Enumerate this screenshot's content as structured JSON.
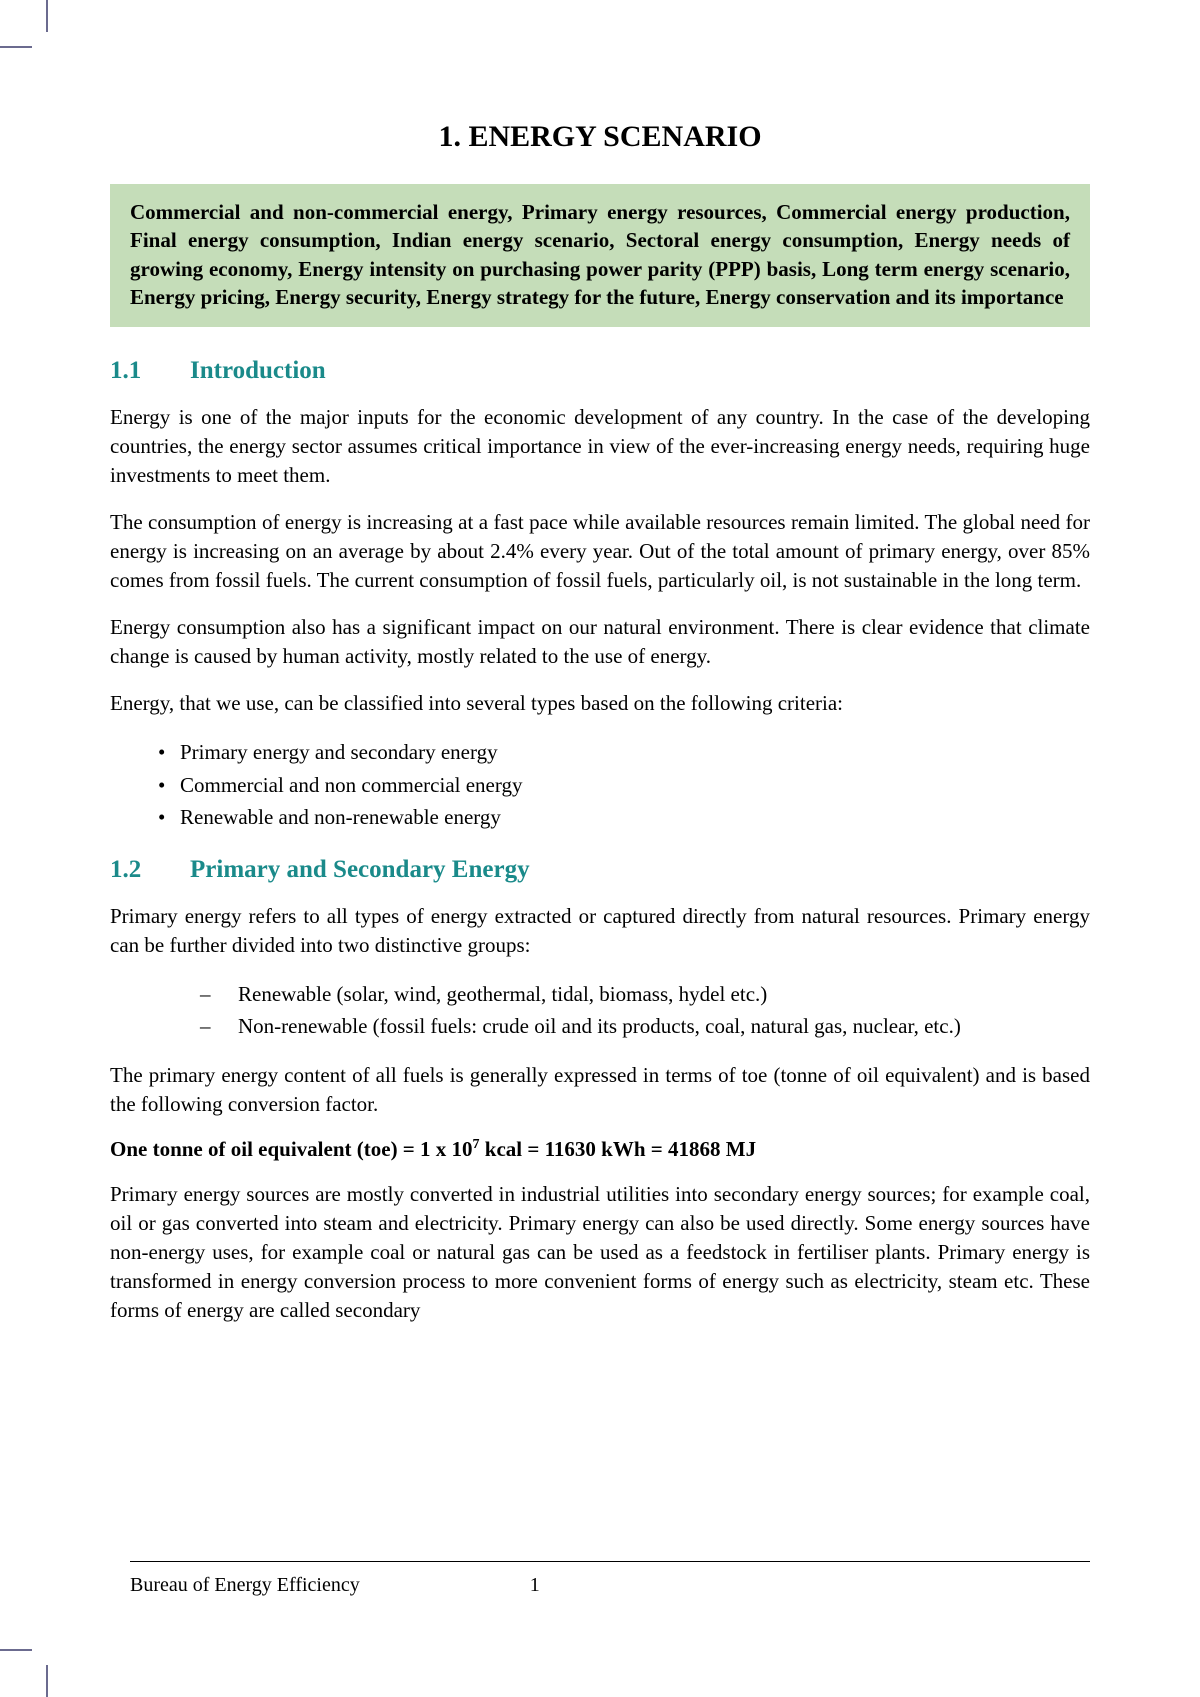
{
  "title": "1. ENERGY SCENARIO",
  "summary": "Commercial and non-commercial energy, Primary energy resources, Commercial energy production, Final energy consumption, Indian energy scenario, Sectoral energy consumption, Energy needs of growing economy, Energy intensity on purchasing power parity (PPP) basis, Long term energy scenario, Energy pricing, Energy security, Energy strategy for the future, Energy conservation and its importance",
  "section1": {
    "num": "1.1",
    "title": "Introduction",
    "p1": "Energy is one of the major inputs for the economic development of any country. In the case of the developing countries, the energy sector assumes critical importance in view of the ever-increasing energy needs, requiring huge investments to meet them.",
    "p2": "The consumption of energy is increasing at a fast pace while available resources remain limited. The global need for energy is increasing on an average by about 2.4% every year. Out of the total amount of primary energy, over 85% comes from fossil fuels. The current consumption of fossil fuels, particularly oil, is not sustainable in the long term.",
    "p3": "Energy consumption also has a significant impact on our natural environment. There is clear evidence that climate change is caused by human activity, mostly related to the use of energy.",
    "p4": "Energy, that we use, can be classified into several types based on the following criteria:",
    "bullets": [
      "Primary energy and secondary energy",
      "Commercial and non commercial energy",
      "Renewable and non-renewable energy"
    ]
  },
  "section2": {
    "num": "1.2",
    "title": "Primary and Secondary Energy",
    "p1": "Primary energy refers to all types of energy extracted or captured directly from natural resources. Primary energy can be further divided into two distinctive groups:",
    "dashes": [
      "Renewable (solar, wind, geothermal, tidal, biomass, hydel etc.)",
      "Non-renewable (fossil fuels: crude oil and its products, coal, natural gas, nuclear, etc.)"
    ],
    "p2": "The primary energy content of all fuels is generally expressed in terms of toe (tonne of oil equivalent) and is based the following conversion factor.",
    "formula_pre": "One tonne of oil equivalent (toe) = 1 x 10",
    "formula_sup": "7",
    "formula_post": " kcal = 11630 kWh = 41868 MJ",
    "p3": "Primary energy sources are mostly converted in industrial utilities into secondary energy sources; for example coal, oil or gas converted   into   steam and electricity. Primary energy can also be used directly. Some energy sources have non-energy uses, for example coal or natural gas can be used as a feedstock in fertiliser plants. Primary energy is transformed in energy conversion process to more convenient forms of energy such as electricity, steam etc. These forms of energy are called secondary"
  },
  "footer": {
    "org": "Bureau of Energy Efficiency",
    "page": "1"
  },
  "colors": {
    "heading_teal": "#1a8a8a",
    "summary_bg": "#c5ddb9",
    "crop_mark": "#6b6b8f",
    "text": "#000000",
    "background": "#ffffff"
  }
}
